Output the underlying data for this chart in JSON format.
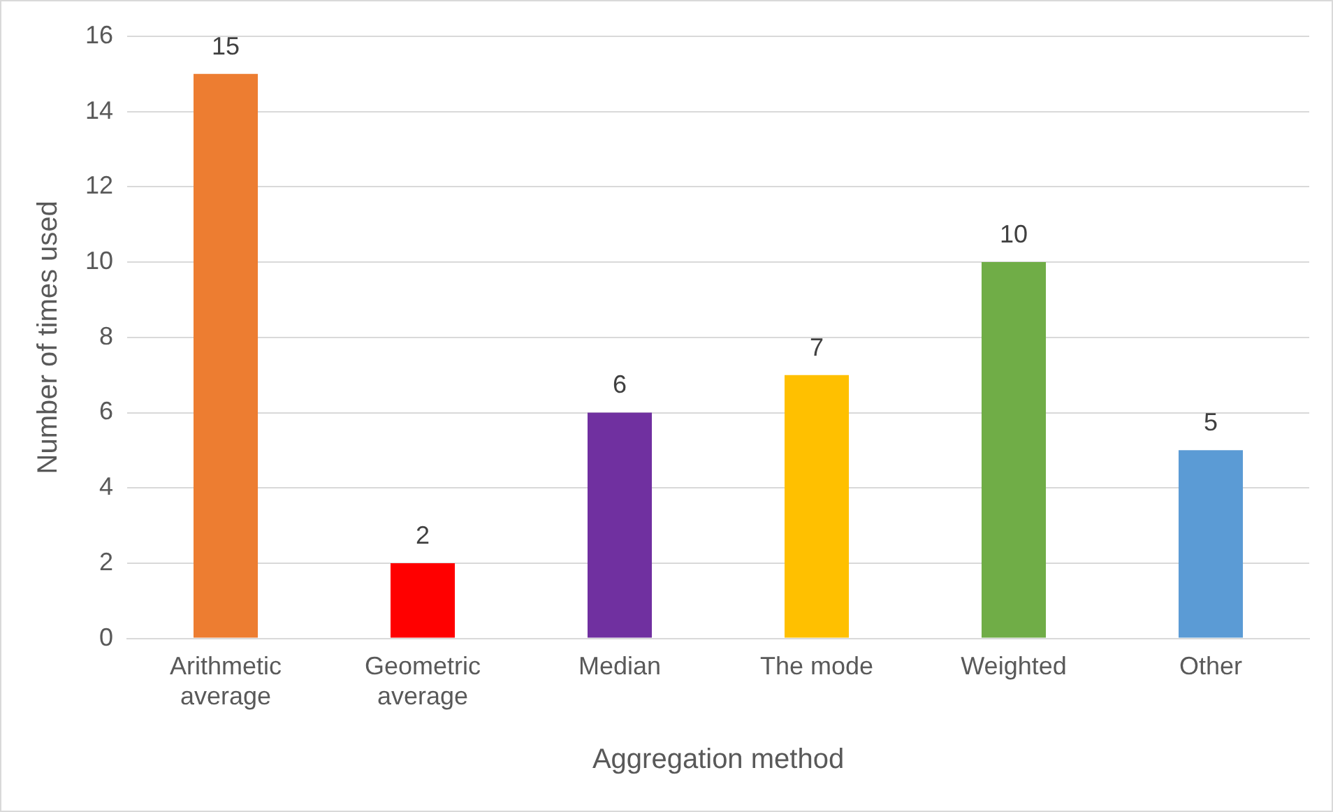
{
  "chart_data": {
    "type": "bar",
    "xlabel": "Aggregation method",
    "ylabel": "Number of times used",
    "categories": [
      "Arithmetic average",
      "Geometric average",
      "Median",
      "The mode",
      "Weighted",
      "Other"
    ],
    "values": [
      15,
      2,
      6,
      7,
      10,
      5
    ],
    "colors": [
      "#ed7d31",
      "#ff0000",
      "#7030a0",
      "#ffc000",
      "#70ad47",
      "#5b9bd5"
    ],
    "ylim": [
      0,
      16
    ],
    "yticks": [
      0,
      2,
      4,
      6,
      8,
      10,
      12,
      14,
      16
    ],
    "grid": "y",
    "data_labels": true
  }
}
